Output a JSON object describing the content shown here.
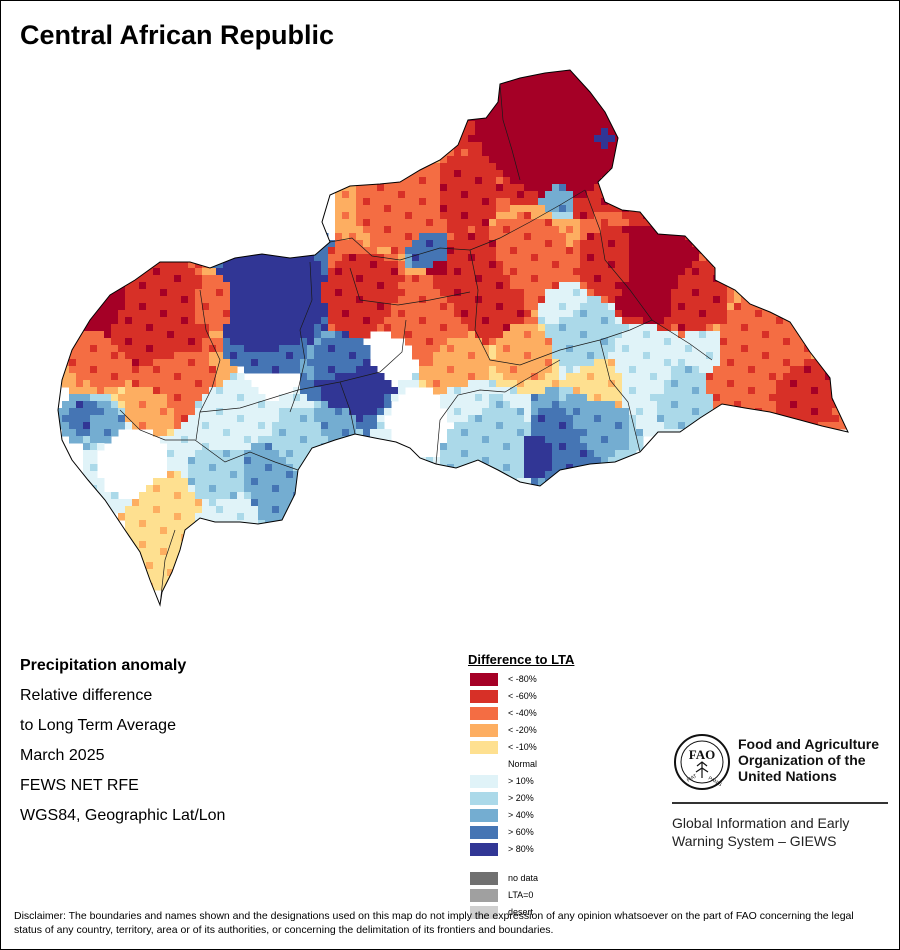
{
  "title": "Central African Republic",
  "info": {
    "heading": "Precipitation anomaly",
    "lines": [
      "Relative difference",
      "to Long Term Average",
      "March 2025",
      "FEWS NET RFE",
      "WGS84, Geographic Lat/Lon"
    ]
  },
  "legend": {
    "title": "Difference to LTA",
    "classes": [
      {
        "label": "< -80%",
        "color": "#a50026"
      },
      {
        "label": "< -60%",
        "color": "#d73027"
      },
      {
        "label": "< -40%",
        "color": "#f46d43"
      },
      {
        "label": "< -20%",
        "color": "#fdae61"
      },
      {
        "label": "< -10%",
        "color": "#fee090"
      },
      {
        "label": "Normal",
        "color": "#ffffff"
      },
      {
        "label": "> 10%",
        "color": "#e0f3f8"
      },
      {
        "label": "> 20%",
        "color": "#abd9e9"
      },
      {
        "label": "> 40%",
        "color": "#74add1"
      },
      {
        "label": "> 60%",
        "color": "#4575b4"
      },
      {
        "label": "> 80%",
        "color": "#313695"
      }
    ],
    "extra": [
      {
        "label": "no data",
        "color": "#707070"
      },
      {
        "label": "LTA=0",
        "color": "#a0a0a0"
      },
      {
        "label": "desert",
        "color": "#cfcfcf"
      }
    ]
  },
  "org": {
    "name_lines": [
      "Food and Agriculture",
      "Organization of the",
      "United Nations"
    ],
    "logo_text": "FAO FIAT PANIS",
    "system_lines": [
      "Global Information and Early",
      "Warning System – GIEWS"
    ]
  },
  "disclaimer": "Disclaimer: The boundaries and names shown and the designations used on this map do not imply the expression of any opinion whatsoever on the part of FAO concerning the legal status of any country, territory, area or of its authorities, or concerning the delimitation of its frontiers and boundaries."
}
